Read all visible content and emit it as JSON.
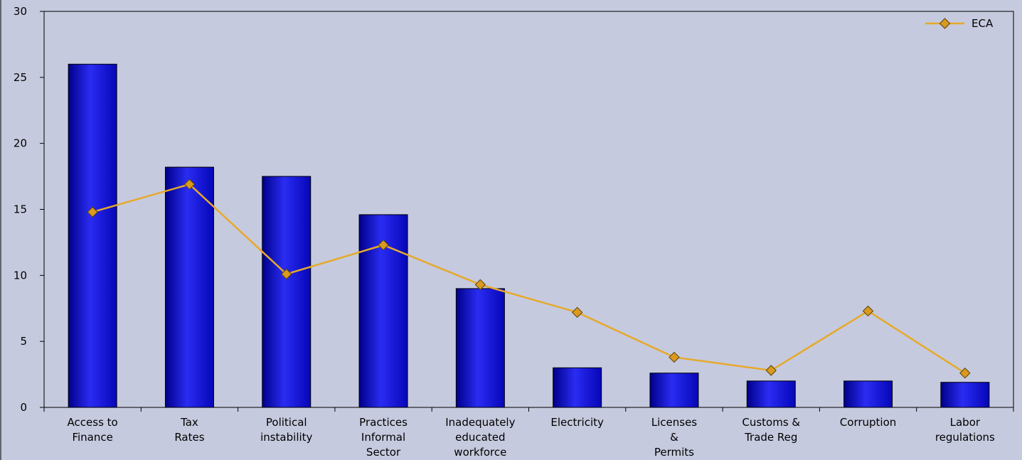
{
  "chart_data": {
    "type": "bar",
    "categories": [
      [
        "Access to",
        "Finance"
      ],
      [
        "Tax",
        "Rates"
      ],
      [
        "Political",
        "instability"
      ],
      [
        "Practices",
        "Informal",
        "Sector"
      ],
      [
        "Inadequately",
        "educated",
        "workforce"
      ],
      [
        "Electricity"
      ],
      [
        "Licenses",
        "&",
        "Permits"
      ],
      [
        "Customs &",
        "Trade Reg"
      ],
      [
        "Corruption"
      ],
      [
        "Labor",
        "regulations"
      ]
    ],
    "series": [
      {
        "type": "bar",
        "values": [
          26.0,
          18.2,
          17.5,
          14.6,
          9.0,
          3.0,
          2.6,
          2.0,
          2.0,
          1.9
        ]
      },
      {
        "type": "line",
        "name": "ECA",
        "values": [
          14.8,
          16.9,
          10.1,
          12.3,
          9.3,
          7.2,
          3.8,
          2.8,
          7.3,
          2.6
        ]
      }
    ],
    "ylim": [
      0,
      30
    ],
    "yticks": [
      "0",
      "5",
      "10",
      "15",
      "20",
      "25",
      "30"
    ],
    "legend": {
      "entries": [
        "ECA"
      ],
      "placement": "top-right"
    },
    "grid": false,
    "colors": {
      "background": "#c6cade",
      "bar": "#1010d8",
      "bar_highlight": "#3a3cf0",
      "bar_shadow": "#00008a",
      "line": "#e6a92a",
      "marker_fill": "#d99a1f",
      "marker_edge": "#5a4008",
      "axis": "#000000"
    }
  }
}
